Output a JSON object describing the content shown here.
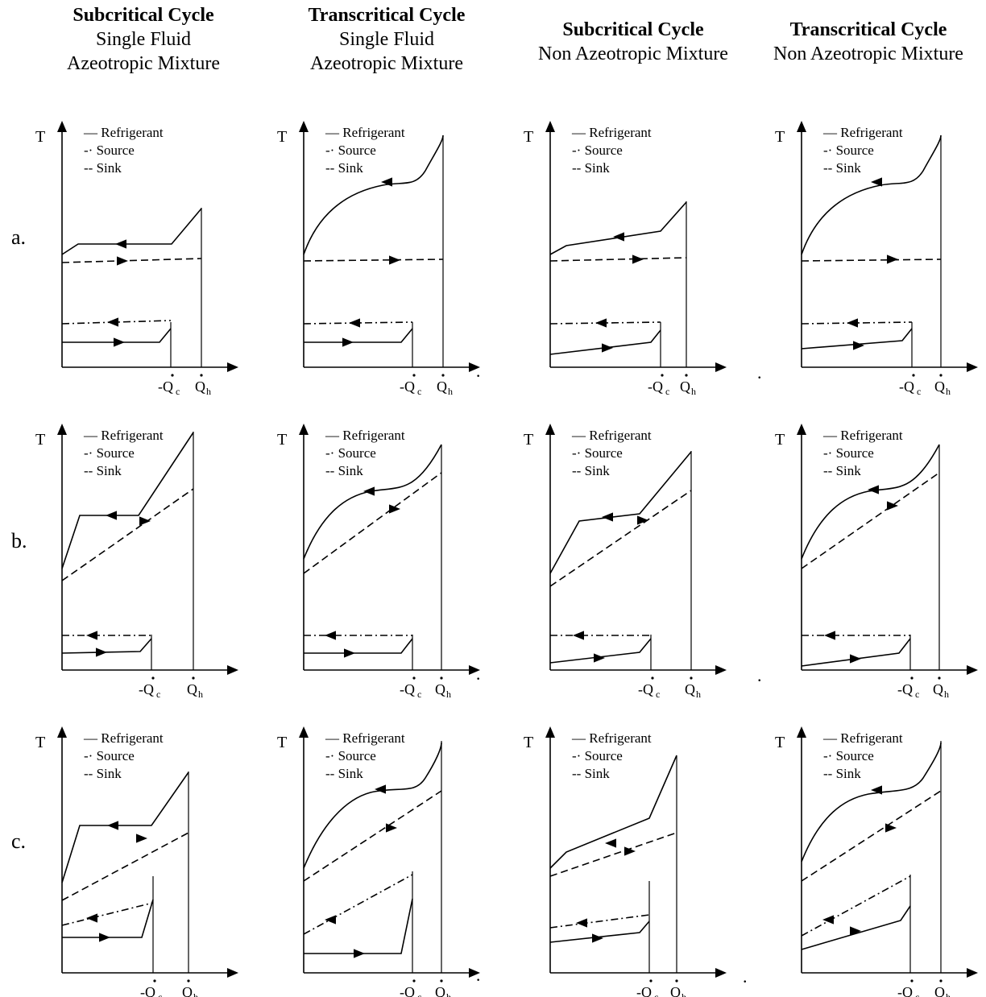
{
  "columns": [
    {
      "title": "Subcritical Cycle",
      "line2": "Single Fluid",
      "line3": "Azeotropic Mixture"
    },
    {
      "title": "Transcritical Cycle",
      "line2": "Single Fluid",
      "line3": "Azeotropic Mixture"
    },
    {
      "title": "Subcritical Cycle",
      "line2": "Non Azeotropic Mixture",
      "line3": ""
    },
    {
      "title": "Transcritical Cycle",
      "line2": "Non Azeotropic Mixture",
      "line3": ""
    }
  ],
  "rows": [
    "a.",
    "b.",
    "c."
  ],
  "axis": {
    "y_label": "T",
    "q_c": "-Q",
    "q_c_sub": "c",
    "q_h": "Q",
    "q_h_sub": "h"
  },
  "legend": {
    "refrigerant": "— Refrigerant",
    "source": "-· Source",
    "sink": "-- Sink"
  },
  "stray_dots": [
    "·",
    ".",
    "·",
    ".",
    "·",
    "."
  ]
}
